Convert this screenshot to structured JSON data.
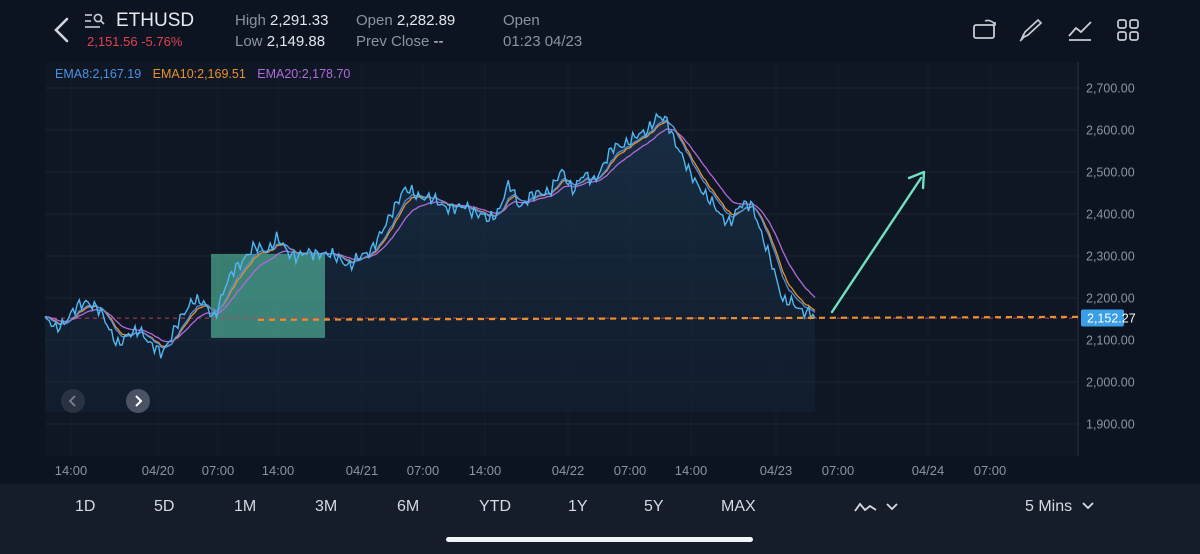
{
  "header": {
    "symbol": "ETHUSD",
    "last_price_change": "2,151.56 -5.76%",
    "high_label": "High",
    "high_value": "2,291.33",
    "low_label": "Low",
    "low_value": "2,149.88",
    "open_label": "Open",
    "open_value": "2,282.89",
    "prev_close_label": "Prev Close",
    "prev_close_value": "--",
    "status_label": "Open",
    "status_time": "01:23 04/23",
    "icons": [
      "back-icon",
      "symbol-search-icon",
      "rotate-screen-icon",
      "draw-icon",
      "indicator-icon",
      "layout-grid-icon"
    ]
  },
  "legend": {
    "ema8": "EMA8:2,167.19",
    "ema10": "EMA10:2,169.51",
    "ema20": "EMA20:2,178.70"
  },
  "colors": {
    "price_line": "#4fb8f0",
    "ema8": "#4a90e2",
    "ema10": "#e8902e",
    "ema20": "#b06ad9",
    "highlight_box": "#5fd3b0",
    "arrow": "#6fe0c0",
    "price_tag": "#3a9fe6"
  },
  "chart_data": {
    "type": "line",
    "symbol": "ETHUSD",
    "interval": "5 Mins",
    "y_axis_ticks": [
      "2,700.00",
      "2,600.00",
      "2,500.00",
      "2,400.00",
      "2,300.00",
      "2,200.00",
      "2,100.00",
      "2,000.00",
      "1,900.00"
    ],
    "ylim": [
      1870,
      2745
    ],
    "x_axis_ticks": [
      "14:00",
      "04/20",
      "07:00",
      "14:00",
      "04/21",
      "07:00",
      "14:00",
      "04/22",
      "07:00",
      "14:00",
      "04/23",
      "07:00",
      "04/24",
      "07:00"
    ],
    "current_price_label": "2,152.27",
    "current_price": 2152.27,
    "prev_close_line": 2152,
    "series": [
      {
        "name": "EMA8",
        "values": [
          2150,
          2125,
          2150,
          2175,
          2195,
          2175,
          2130,
          2090,
          2110,
          2130,
          2085,
          2070,
          2110,
          2155,
          2200,
          2185,
          2155,
          2220,
          2270,
          2300,
          2320,
          2315,
          2340,
          2310,
          2300,
          2305,
          2310,
          2300,
          2295,
          2275,
          2300,
          2320,
          2355,
          2415,
          2455,
          2450,
          2440,
          2430,
          2420,
          2410,
          2420,
          2400,
          2385,
          2410,
          2470,
          2420,
          2440,
          2450,
          2460,
          2500,
          2460,
          2490,
          2480,
          2520,
          2560,
          2570,
          2580,
          2600,
          2630,
          2620,
          2560,
          2500,
          2470,
          2430,
          2400,
          2380,
          2420,
          2430,
          2340,
          2280,
          2190,
          2185,
          2170,
          2155
        ]
      },
      {
        "name": "EMA10"
      },
      {
        "name": "EMA20"
      }
    ],
    "annotations": [
      "highlight box",
      "up arrow",
      "orange dashed price line"
    ]
  },
  "bottom_bar": {
    "ranges": [
      "1D",
      "5D",
      "1M",
      "3M",
      "6M",
      "YTD",
      "1Y",
      "5Y",
      "MAX"
    ],
    "chart_type_icon": "line-chart-icon",
    "interval": "5 Mins"
  }
}
